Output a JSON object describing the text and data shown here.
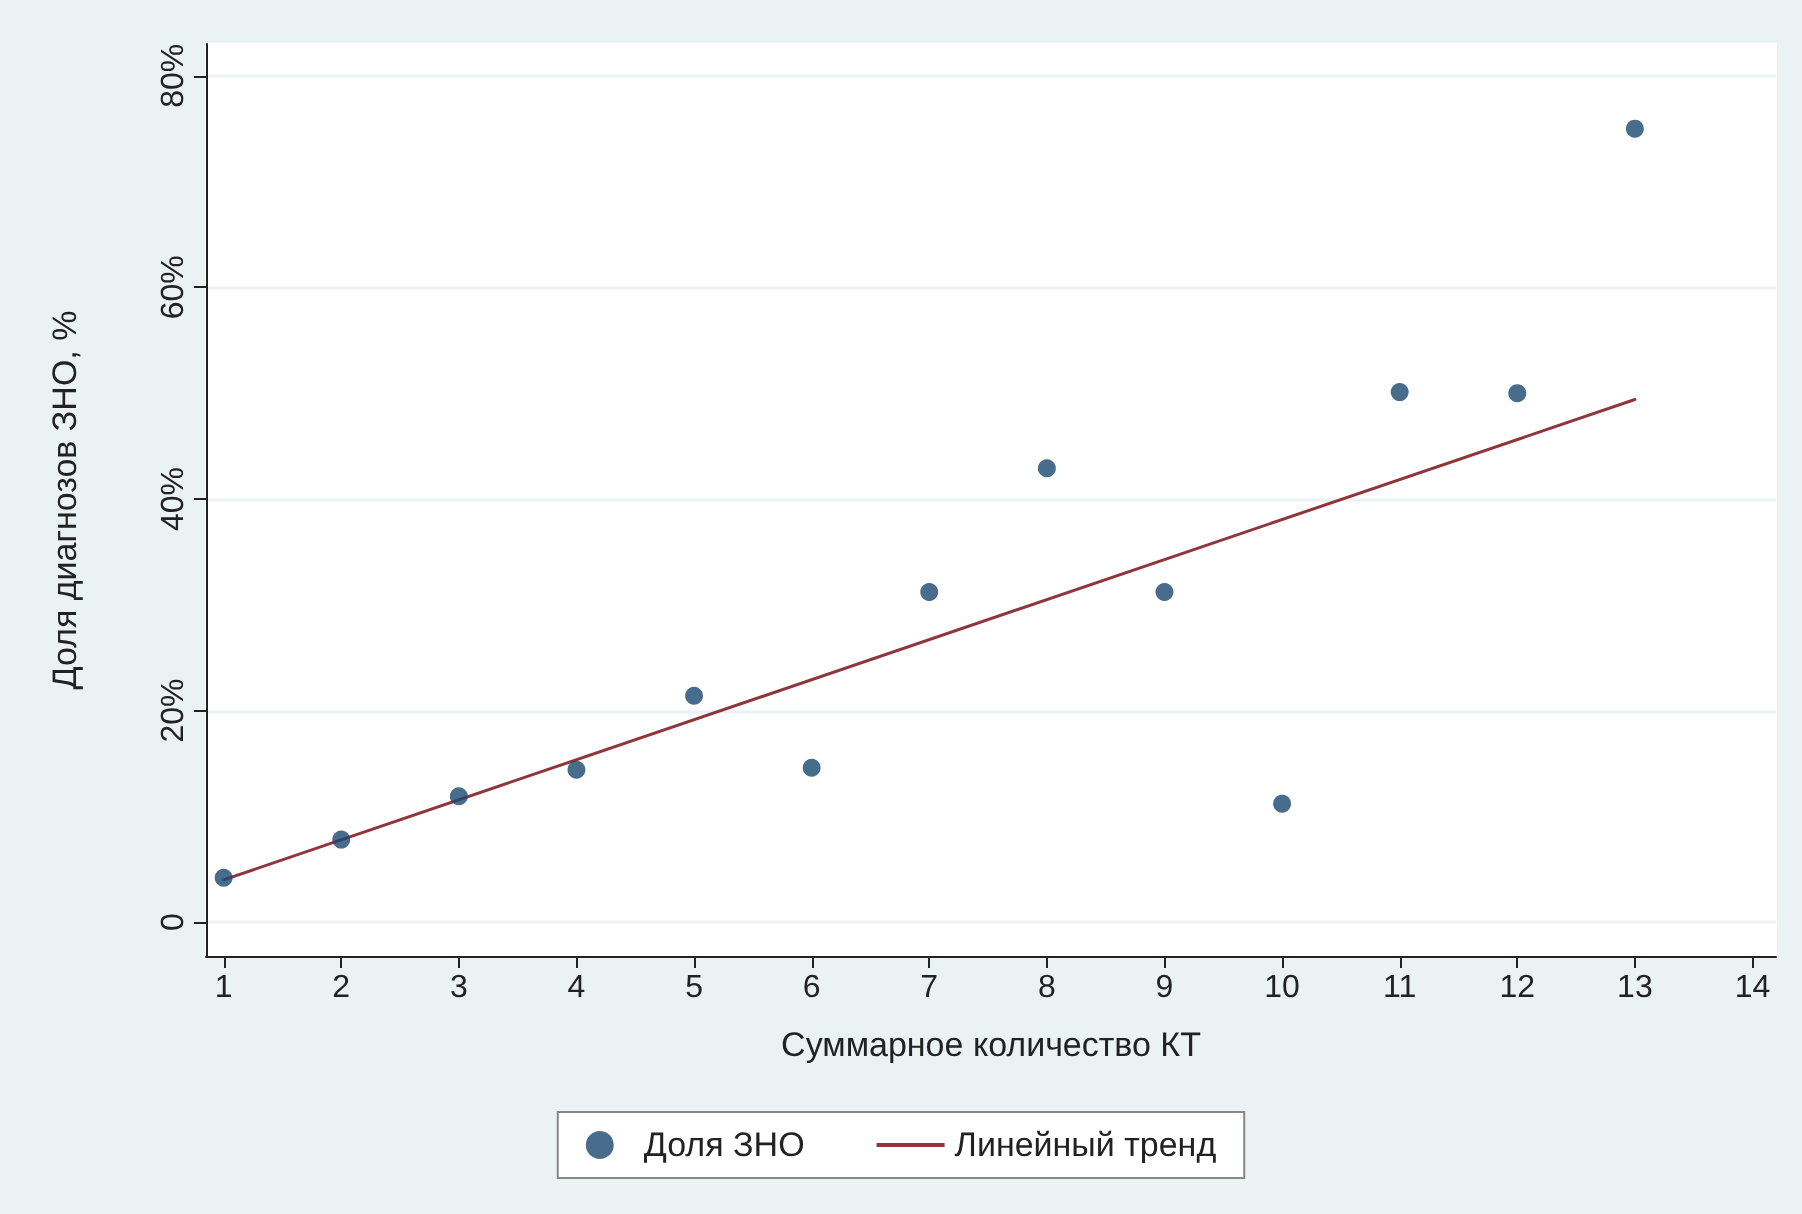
{
  "chart_data": {
    "type": "scatter",
    "xlabel": "Суммарное количество КТ",
    "ylabel": "Доля диагнозов ЗНО, %",
    "x": [
      1,
      2,
      3,
      4,
      5,
      6,
      7,
      8,
      9,
      10,
      11,
      12,
      13
    ],
    "series": [
      {
        "name": "Доля ЗНО",
        "color": "#1a476f",
        "marker": "circle",
        "values": [
          4.2,
          7.8,
          11.9,
          14.4,
          21.4,
          14.6,
          31.2,
          42.9,
          31.2,
          11.2,
          50.1,
          50,
          75
        ]
      },
      {
        "name": "Линейный тренд",
        "type": "line",
        "color": "#90353b",
        "marker": "none",
        "line_style": "solid",
        "x": [
          1,
          13
        ],
        "values": [
          4,
          49.4
        ]
      }
    ],
    "xlim": [
      0.85,
      14.2
    ],
    "xticks": [
      1,
      2,
      3,
      4,
      5,
      6,
      7,
      8,
      9,
      10,
      11,
      12,
      13,
      14
    ],
    "ylim": [
      -3.2,
      83
    ],
    "yticks": [
      0,
      {
        "value": 20,
        "label": "20%"
      },
      {
        "value": 40,
        "label": "40%"
      },
      {
        "value": 60,
        "label": "60%"
      },
      {
        "value": 80,
        "label": "80%"
      }
    ],
    "grid": "y",
    "legend": "bottom"
  }
}
